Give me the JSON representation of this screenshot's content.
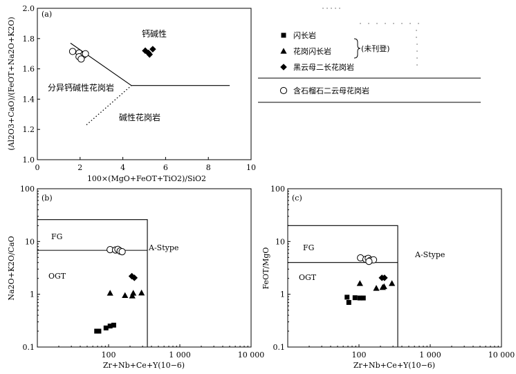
{
  "chart_data": [
    {
      "id": "a",
      "type": "scatter",
      "panel_label": "(a)",
      "xlabel": "100×(MgO+FeOT+TiO2)/SiO2",
      "ylabel": "(Al2O3+CaO)/(FeOT+Na2O+K2O)",
      "xlim": [
        0,
        10
      ],
      "ylim": [
        1.0,
        2.0
      ],
      "xticks": [
        "0",
        "2",
        "4",
        "6",
        "8",
        "10"
      ],
      "yticks": [
        "1.0",
        "1.2",
        "1.4",
        "1.6",
        "1.8",
        "2.0"
      ],
      "region_labels": [
        "钙碱性",
        "分异钙碱性花岗岩",
        "碱性花岗岩"
      ],
      "boundary_lines": {
        "upper": [
          [
            1.55,
            1.77
          ],
          [
            4.4,
            1.49
          ],
          [
            9.0,
            1.49
          ]
        ],
        "lower_dotted": [
          [
            2.3,
            1.23
          ],
          [
            4.4,
            1.49
          ]
        ]
      },
      "series": [
        {
          "name": "含石榴石二云母花岗岩",
          "marker": "circle-open",
          "points": [
            [
              1.65,
              1.715
            ],
            [
              1.95,
              1.705
            ],
            [
              2.15,
              1.69
            ],
            [
              2.25,
              1.7
            ],
            [
              1.95,
              1.68
            ],
            [
              2.05,
              1.665
            ]
          ]
        },
        {
          "name": "黑云母二长花岗岩",
          "marker": "diamond",
          "points": [
            [
              5.05,
              1.72
            ],
            [
              5.2,
              1.705
            ],
            [
              5.4,
              1.73
            ],
            [
              5.25,
              1.695
            ]
          ]
        }
      ]
    },
    {
      "id": "b",
      "type": "scatter",
      "panel_label": "(b)",
      "xlabel": "Zr+Nb+Ce+Y(10−6)",
      "ylabel": "Na2O+K2O/CaO",
      "xscale": "log",
      "yscale": "log",
      "xlim": [
        10,
        10000
      ],
      "ylim": [
        0.1,
        100
      ],
      "xticks": [
        "100",
        "1 000",
        "10 000"
      ],
      "yticks": [
        "0.1",
        "1",
        "10",
        "100"
      ],
      "region_labels": [
        "FG",
        "OGT",
        "A-Stype"
      ],
      "box": {
        "xmax": 350,
        "ymax": 26,
        "fg_ogt_boundary_y": 6.8
      },
      "series": [
        {
          "name": "闪长岩",
          "marker": "square",
          "points": [
            [
              68,
              0.2
            ],
            [
              73,
              0.2
            ],
            [
              92,
              0.23
            ],
            [
              105,
              0.25
            ],
            [
              118,
              0.26
            ]
          ]
        },
        {
          "name": "花岗闪长岩",
          "marker": "triangle",
          "points": [
            [
              105,
              1.05
            ],
            [
              170,
              0.95
            ],
            [
              215,
              0.93
            ],
            [
              222,
              1.05
            ],
            [
              290,
              1.06
            ]
          ]
        },
        {
          "name": "黑云母二长花岗岩",
          "marker": "diamond",
          "points": [
            [
              212,
              2.2
            ],
            [
              230,
              2.05
            ]
          ]
        },
        {
          "name": "含石榴石二云母花岗岩",
          "marker": "circle-open",
          "points": [
            [
              105,
              7.0
            ],
            [
              125,
              6.9
            ],
            [
              135,
              7.1
            ],
            [
              145,
              6.6
            ],
            [
              155,
              6.4
            ]
          ]
        }
      ]
    },
    {
      "id": "c",
      "type": "scatter",
      "panel_label": "(c)",
      "xlabel": "Zr+Nb+Ce+Y(10−6)",
      "ylabel": "FeOT/MgO",
      "xscale": "log",
      "yscale": "log",
      "xlim": [
        10,
        10000
      ],
      "ylim": [
        0.1,
        100
      ],
      "xticks": [
        "100",
        "1 000",
        "10 000"
      ],
      "yticks": [
        "0.1",
        "1",
        "10",
        "100"
      ],
      "region_labels": [
        "FG",
        "OGT",
        "A-Stype"
      ],
      "box": {
        "xmax": 350,
        "ymax": 20,
        "fg_ogt_boundary_y": 4.0
      },
      "series": [
        {
          "name": "闪长岩",
          "marker": "square",
          "points": [
            [
              68,
              0.88
            ],
            [
              72,
              0.7
            ],
            [
              88,
              0.86
            ],
            [
              103,
              0.85
            ],
            [
              115,
              0.85
            ]
          ]
        },
        {
          "name": "花岗闪长岩",
          "marker": "triangle",
          "points": [
            [
              103,
              1.6
            ],
            [
              175,
              1.3
            ],
            [
              215,
              1.35
            ],
            [
              225,
              1.4
            ],
            [
              290,
              1.6
            ]
          ]
        },
        {
          "name": "黑云母二长花岗岩",
          "marker": "diamond",
          "points": [
            [
              210,
              2.05
            ],
            [
              228,
              2.05
            ]
          ]
        },
        {
          "name": "含石榴石二云母花岗岩",
          "marker": "circle-open",
          "points": [
            [
              105,
              4.9
            ],
            [
              125,
              4.6
            ],
            [
              135,
              4.8
            ],
            [
              145,
              4.4
            ],
            [
              160,
              4.5
            ],
            [
              138,
              4.2
            ]
          ]
        }
      ]
    }
  ],
  "legend": {
    "items": [
      {
        "label": "闪长岩",
        "marker": "square"
      },
      {
        "label": "花岗闪长岩",
        "marker": "triangle"
      },
      {
        "label": "黑云母二长花岗岩",
        "marker": "diamond"
      },
      {
        "label": "含石榴石二云母花岗岩",
        "marker": "circle-open"
      }
    ],
    "bracket_note": "(未刊登)"
  }
}
